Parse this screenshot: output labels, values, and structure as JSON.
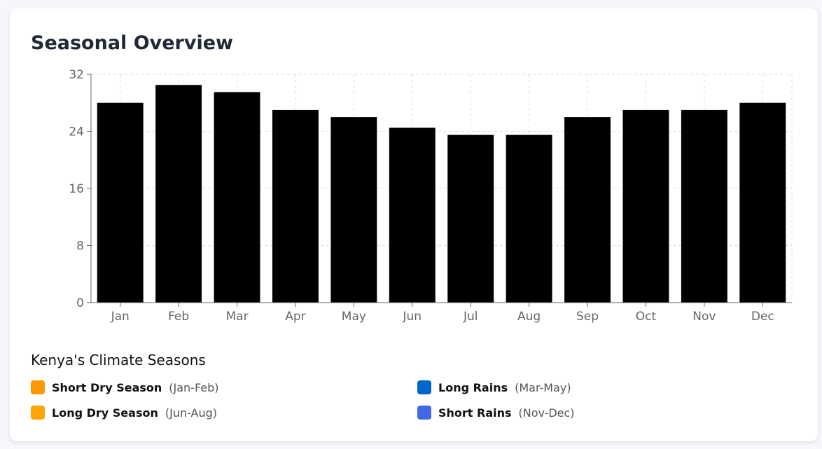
{
  "title": "Seasonal Overview",
  "chart_data": {
    "type": "bar",
    "categories": [
      "Jan",
      "Feb",
      "Mar",
      "Apr",
      "May",
      "Jun",
      "Jul",
      "Aug",
      "Sep",
      "Oct",
      "Nov",
      "Dec"
    ],
    "values": [
      28,
      30.5,
      29.5,
      27,
      26,
      24.5,
      23.5,
      23.5,
      26,
      27,
      27,
      28
    ],
    "ylim": [
      0,
      32
    ],
    "yticks": [
      0,
      8,
      16,
      24,
      32
    ],
    "grid": true,
    "bar_color": "#000000",
    "title": "",
    "xlabel": "",
    "ylabel": ""
  },
  "legend": {
    "title": "Kenya's Climate Seasons",
    "items": [
      {
        "name": "Short Dry Season",
        "range": "(Jan-Feb)",
        "color": "#FF9800"
      },
      {
        "name": "Long Rains",
        "range": "(Mar-May)",
        "color": "#0066CC"
      },
      {
        "name": "Long Dry Season",
        "range": "(Jun-Aug)",
        "color": "#FFA500"
      },
      {
        "name": "Short Rains",
        "range": "(Nov-Dec)",
        "color": "#4169E1"
      }
    ]
  }
}
